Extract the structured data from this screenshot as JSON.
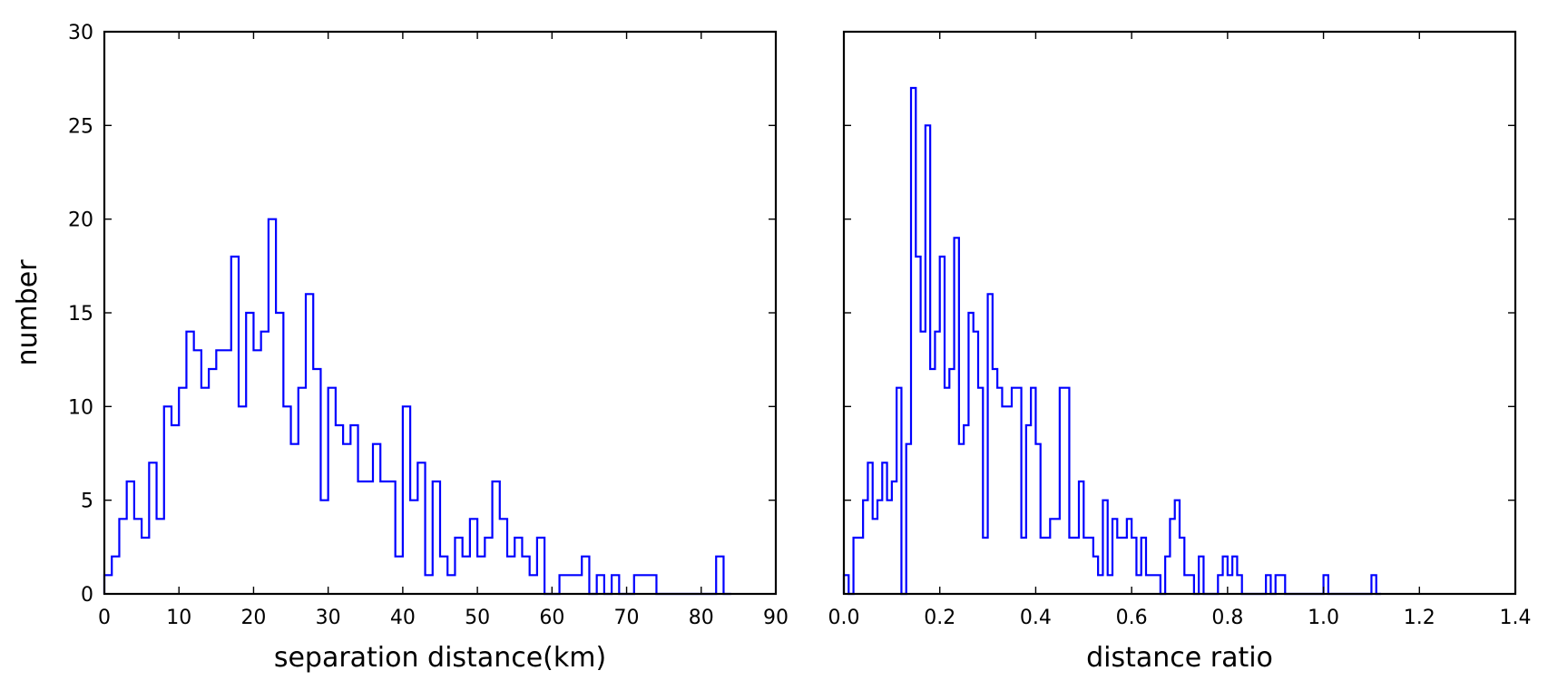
{
  "chart_data": [
    {
      "type": "step-histogram",
      "xlabel": "separation distance(km)",
      "ylabel": "number",
      "xlim": [
        0,
        90
      ],
      "ylim": [
        0,
        30
      ],
      "xticks": [
        "0",
        "10",
        "20",
        "30",
        "40",
        "50",
        "60",
        "70",
        "80",
        "90"
      ],
      "yticks": [
        "0",
        "5",
        "10",
        "15",
        "20",
        "25",
        "30"
      ],
      "line_color": "#0000ff",
      "bin_start": 0,
      "bin_width": 1,
      "counts": [
        1,
        2,
        4,
        6,
        4,
        3,
        7,
        4,
        10,
        9,
        11,
        14,
        13,
        11,
        12,
        13,
        13,
        18,
        10,
        15,
        13,
        14,
        20,
        15,
        10,
        8,
        11,
        16,
        12,
        5,
        11,
        9,
        8,
        9,
        6,
        6,
        8,
        6,
        6,
        2,
        10,
        5,
        7,
        1,
        6,
        2,
        1,
        3,
        2,
        4,
        2,
        3,
        6,
        4,
        2,
        3,
        2,
        1,
        3,
        0,
        0,
        1,
        1,
        1,
        2,
        0,
        1,
        0,
        1,
        0,
        0,
        1,
        1,
        1,
        0,
        0,
        0,
        0,
        0,
        0,
        0,
        0,
        2,
        0
      ]
    },
    {
      "type": "step-histogram",
      "xlabel": "distance ratio",
      "ylabel": "",
      "xlim": [
        0,
        1.4
      ],
      "ylim": [
        0,
        30
      ],
      "xticks": [
        "0.0",
        "0.2",
        "0.4",
        "0.6",
        "0.8",
        "1.0",
        "1.2",
        "1.4"
      ],
      "yticks": [],
      "line_color": "#0000ff",
      "bin_start": 0,
      "bin_width": 0.01,
      "counts": [
        1,
        0,
        3,
        3,
        5,
        7,
        4,
        5,
        7,
        5,
        6,
        11,
        0,
        8,
        27,
        18,
        14,
        25,
        12,
        14,
        18,
        11,
        12,
        19,
        8,
        9,
        15,
        14,
        11,
        3,
        16,
        12,
        11,
        10,
        10,
        11,
        11,
        3,
        9,
        11,
        8,
        3,
        3,
        4,
        4,
        11,
        11,
        3,
        3,
        6,
        3,
        3,
        2,
        1,
        5,
        1,
        4,
        3,
        3,
        4,
        3,
        1,
        3,
        1,
        1,
        1,
        0,
        2,
        4,
        5,
        3,
        1,
        1,
        0,
        2,
        0,
        0,
        0,
        1,
        2,
        1,
        2,
        1,
        0,
        0,
        0,
        0,
        0,
        1,
        0,
        1,
        1,
        0,
        0,
        0,
        0,
        0,
        0,
        0,
        0,
        1,
        0,
        0,
        0,
        0,
        0,
        0,
        0,
        0,
        0,
        1,
        0
      ]
    }
  ]
}
